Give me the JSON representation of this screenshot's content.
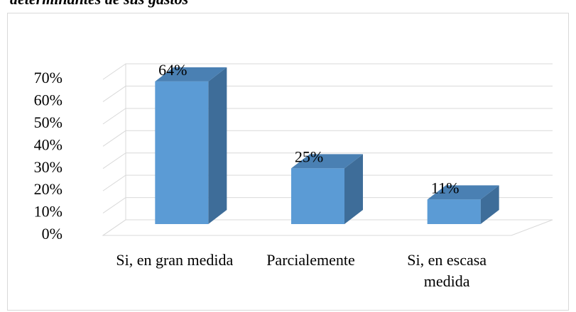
{
  "chart_data": {
    "type": "bar3d",
    "title": "determinantes de sus gastos",
    "categories": [
      "Si, en gran medida",
      "Parcialemente",
      "Si, en escasa medida"
    ],
    "values": [
      64,
      25,
      11
    ],
    "value_labels": [
      "64%",
      "25%",
      "11%"
    ],
    "color": "#5b9bd5",
    "ylim": [
      0,
      70
    ],
    "yticks": [
      {
        "value": 0,
        "label": "0%"
      },
      {
        "value": 10,
        "label": "10%"
      },
      {
        "value": 20,
        "label": "20%"
      },
      {
        "value": 30,
        "label": "30%"
      },
      {
        "value": 40,
        "label": "40%"
      },
      {
        "value": 50,
        "label": "50%"
      },
      {
        "value": 60,
        "label": "60%"
      },
      {
        "value": 70,
        "label": "70%"
      }
    ],
    "grid": true
  }
}
